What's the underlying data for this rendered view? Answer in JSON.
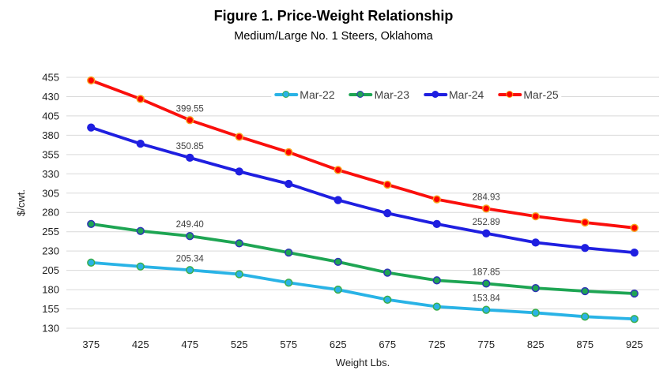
{
  "figure": {
    "title": "Figure 1. Price-Weight Relationship",
    "subtitle": "Medium/Large No. 1 Steers, Oklahoma"
  },
  "chart_data": {
    "type": "line",
    "title": "Figure 1. Price-Weight Relationship",
    "subtitle": "Medium/Large No. 1 Steers, Oklahoma",
    "xlabel": "Weight Lbs.",
    "ylabel": "$/cwt.",
    "ylim": [
      130,
      455
    ],
    "ytick_step": 25,
    "grid": true,
    "legend_position": "top-center-inside",
    "categories": [
      375,
      425,
      475,
      525,
      575,
      625,
      675,
      725,
      775,
      825,
      875,
      925
    ],
    "series": [
      {
        "name": "Mar-22",
        "line_color": "#29b3e6",
        "marker_fill": "#29b3e6",
        "marker_edge": "#3bae4b",
        "values": [
          215,
          210,
          205.34,
          200,
          189,
          180,
          167,
          158,
          153.84,
          150,
          145,
          142
        ]
      },
      {
        "name": "Mar-23",
        "line_color": "#1ea553",
        "marker_fill": "#1ea553",
        "marker_edge": "#2f35b5",
        "values": [
          265,
          256,
          249.4,
          240,
          228,
          216,
          202,
          192,
          187.85,
          182,
          178,
          175
        ]
      },
      {
        "name": "Mar-24",
        "line_color": "#1f1fe0",
        "marker_fill": "#1f1fe0",
        "marker_edge": "#1f1fe0",
        "values": [
          390,
          369,
          350.85,
          333,
          317,
          296,
          279,
          265,
          252.89,
          241,
          234,
          228
        ]
      },
      {
        "name": "Mar-25",
        "line_color": "#fa0f0c",
        "marker_fill": "#ff0000",
        "marker_edge": "#f7a11b",
        "values": [
          451,
          427,
          399.55,
          378,
          358,
          335,
          316,
          297,
          284.93,
          275,
          267,
          260
        ]
      }
    ],
    "data_labels": [
      {
        "series": "Mar-25",
        "index": 2,
        "text": "399.55"
      },
      {
        "series": "Mar-24",
        "index": 2,
        "text": "350.85"
      },
      {
        "series": "Mar-23",
        "index": 2,
        "text": "249.40"
      },
      {
        "series": "Mar-22",
        "index": 2,
        "text": "205.34"
      },
      {
        "series": "Mar-25",
        "index": 8,
        "text": "284.93"
      },
      {
        "series": "Mar-24",
        "index": 8,
        "text": "252.89"
      },
      {
        "series": "Mar-23",
        "index": 8,
        "text": "187.85"
      },
      {
        "series": "Mar-22",
        "index": 8,
        "text": "153.84"
      }
    ]
  }
}
